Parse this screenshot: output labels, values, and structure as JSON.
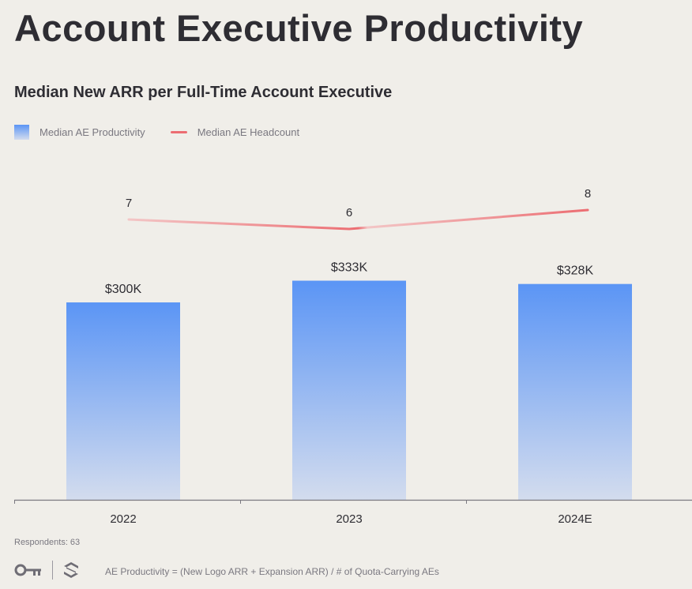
{
  "header": {
    "title": "Account Executive Productivity",
    "subtitle": "Median New ARR per Full-Time Account Executive"
  },
  "legend": {
    "bar_label": "Median AE Productivity",
    "line_label": "Median AE Headcount"
  },
  "footer": {
    "respondents": "Respondents: 63",
    "note": "AE Productivity = (New Logo ARR + Expansion ARR) / # of Quota-Carrying AEs"
  },
  "colors": {
    "bar_top": "#5b95f5",
    "bar_bottom": "#d3dcee",
    "line": "#ec6d72",
    "line_faded": "#f3c6c6",
    "axis": "#7a7880",
    "text": "#2e2d33"
  },
  "chart_data": {
    "type": "bar",
    "categories": [
      "2022",
      "2023",
      "2024E"
    ],
    "series": [
      {
        "name": "Median AE Productivity",
        "type": "bar",
        "values": [
          300,
          333,
          328
        ],
        "labels": [
          "$300K",
          "$333K",
          "$328K"
        ]
      },
      {
        "name": "Median AE Headcount",
        "type": "line",
        "values": [
          7,
          6,
          8
        ],
        "labels": [
          "7",
          "6",
          "8"
        ]
      }
    ],
    "title": "Median New ARR per Full-Time Account Executive",
    "legend_position": "top-left",
    "grid": false
  }
}
